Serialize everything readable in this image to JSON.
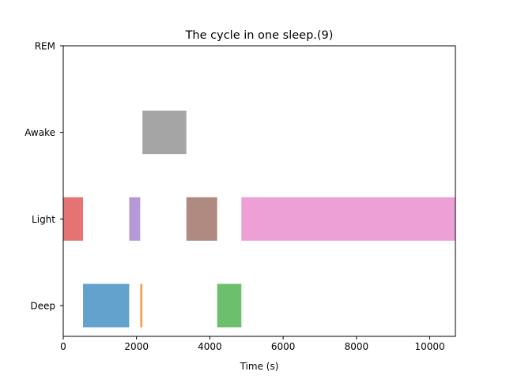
{
  "chart_data": {
    "type": "broken-barh",
    "title": "The cycle in one sleep.(9)",
    "xlabel": "Time (s)",
    "ylabel": "",
    "xlim": [
      0,
      10700
    ],
    "xticks": [
      0,
      2000,
      4000,
      6000,
      8000,
      10000
    ],
    "ycategories": [
      "Deep",
      "Light",
      "Awake",
      "REM"
    ],
    "grid": false,
    "segments": [
      {
        "stage": "Light",
        "start": 0,
        "end": 540,
        "color": "#e57373"
      },
      {
        "stage": "Deep",
        "start": 540,
        "end": 1800,
        "color": "#62a2cc"
      },
      {
        "stage": "Light",
        "start": 1800,
        "end": 2100,
        "color": "#b499d6"
      },
      {
        "stage": "Deep",
        "start": 2100,
        "end": 2160,
        "color": "#f5a05a"
      },
      {
        "stage": "Awake",
        "start": 2160,
        "end": 3360,
        "color": "#a5a5a5"
      },
      {
        "stage": "Light",
        "start": 3360,
        "end": 4200,
        "color": "#af8a80"
      },
      {
        "stage": "Deep",
        "start": 4200,
        "end": 4860,
        "color": "#6cbf6c"
      },
      {
        "stage": "Light",
        "start": 4860,
        "end": 10700,
        "color": "#eca0d6"
      }
    ]
  }
}
